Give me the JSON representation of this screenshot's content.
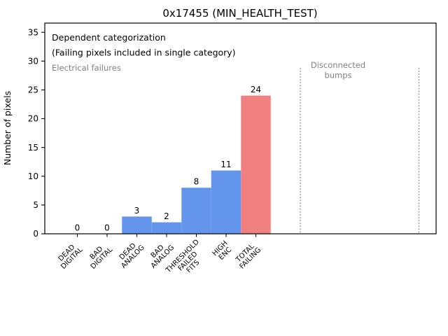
{
  "annotations": {
    "dependent_line1": "Dependent categorization",
    "dependent_line2": "(Failing pixels included in single category)",
    "electrical": "Electrical failures",
    "disconnected_line1": "Disconnected",
    "disconnected_line2": "bumps"
  },
  "colors": {
    "bar_blue": "#6495ed",
    "bar_red": "#f08080",
    "gray_text": "#808080",
    "axis_black": "#000000"
  },
  "chart_data": {
    "type": "bar",
    "title": "0x17455 (MIN_HEALTH_TEST)",
    "xlabel": "",
    "ylabel": "Number of pixels",
    "categories": [
      "DEAD DIGITAL",
      "BAD DIGITAL",
      "DEAD ANALOG",
      "BAD ANALOG",
      "THRESHOLD FAILED FITS",
      "HIGH ENC",
      "TOTAL FAILING"
    ],
    "categories_multiline": [
      [
        "DEAD",
        "DIGITAL"
      ],
      [
        "BAD",
        "DIGITAL"
      ],
      [
        "DEAD",
        "ANALOG"
      ],
      [
        "BAD",
        "ANALOG"
      ],
      [
        "THRESHOLD",
        "FAILED",
        "FITS"
      ],
      [
        "HIGH",
        "ENC"
      ],
      [
        "TOTAL",
        "FAILING"
      ]
    ],
    "values": [
      0,
      0,
      3,
      2,
      8,
      11,
      24
    ],
    "value_labels": [
      "0",
      "0",
      "3",
      "2",
      "8",
      "11",
      "24"
    ],
    "bar_colors": [
      "#6495ed",
      "#6495ed",
      "#6495ed",
      "#6495ed",
      "#6495ed",
      "#6495ed",
      "#f08080"
    ],
    "yticks": [
      0,
      5,
      10,
      15,
      20,
      25,
      30,
      35
    ],
    "ylim": [
      0,
      36.6
    ],
    "grid": false,
    "legend_position": "none",
    "bar_gap": 0,
    "section_labels": [
      "Electrical failures",
      "Disconnected bumps"
    ]
  }
}
